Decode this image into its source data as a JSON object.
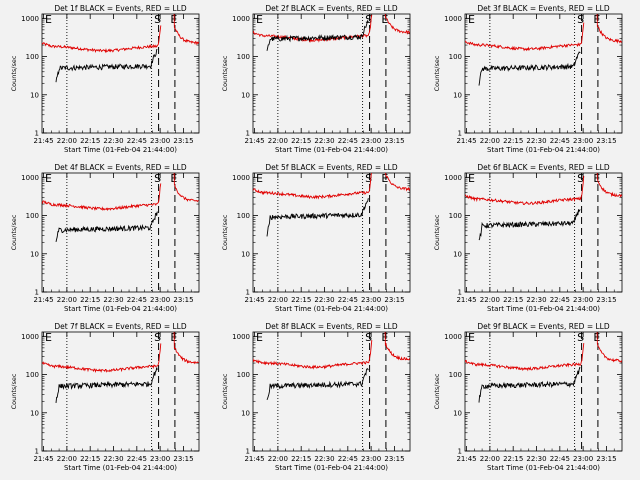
{
  "chart_data": {
    "type": "line",
    "ylabel": "Counts/sec",
    "xlabel": "Start Time (01-Feb-04 21:44:00)",
    "x_tick_labels": [
      "21:45",
      "22:00",
      "22:15",
      "22:30",
      "22:45",
      "23:00",
      "23:15"
    ],
    "y_tick_labels": [
      "1",
      "10",
      "100",
      "1000"
    ],
    "x_range_minutes_after_start": [
      0,
      101
    ],
    "ylim": [
      1,
      1300
    ],
    "y_scale": "log",
    "event_markers": [
      {
        "label": "S",
        "minute": 75,
        "style": "dashed"
      },
      {
        "label": "E",
        "minute": 85.5,
        "style": "dashed"
      }
    ],
    "dotted_markers_minute": [
      16,
      70.5
    ],
    "series_colors": {
      "events": "#000000",
      "lld": "#e00000"
    },
    "panels": [
      {
        "title": "Det 1f BLACK = Events, RED = LLD",
        "events_level": 50,
        "events_start": 40,
        "lld_level": 190
      },
      {
        "title": "Det 2f BLACK = Events, RED = LLD",
        "events_level": 290,
        "events_start": 250,
        "lld_level": 360
      },
      {
        "title": "Det 3f BLACK = Events, RED = LLD",
        "events_level": 48,
        "events_start": 40,
        "lld_level": 210
      },
      {
        "title": "Det 4f BLACK = Events, RED = LLD",
        "events_level": 42,
        "events_start": 40,
        "lld_level": 200
      },
      {
        "title": "Det 5f BLACK = Events, RED = LLD",
        "events_level": 92,
        "events_start": 60,
        "lld_level": 410
      },
      {
        "title": "Det 6f BLACK = Events, RED = LLD",
        "events_level": 55,
        "events_start": 40,
        "lld_level": 280
      },
      {
        "title": "Det 7f BLACK = Events, RED = LLD",
        "events_level": 50,
        "events_start": 40,
        "lld_level": 170
      },
      {
        "title": "Det 8f BLACK = Events, RED = LLD",
        "events_level": 50,
        "events_start": 40,
        "lld_level": 210
      },
      {
        "title": "Det 9f BLACK = Events, RED = LLD",
        "events_level": 50,
        "events_start": 40,
        "lld_level": 190
      }
    ]
  }
}
